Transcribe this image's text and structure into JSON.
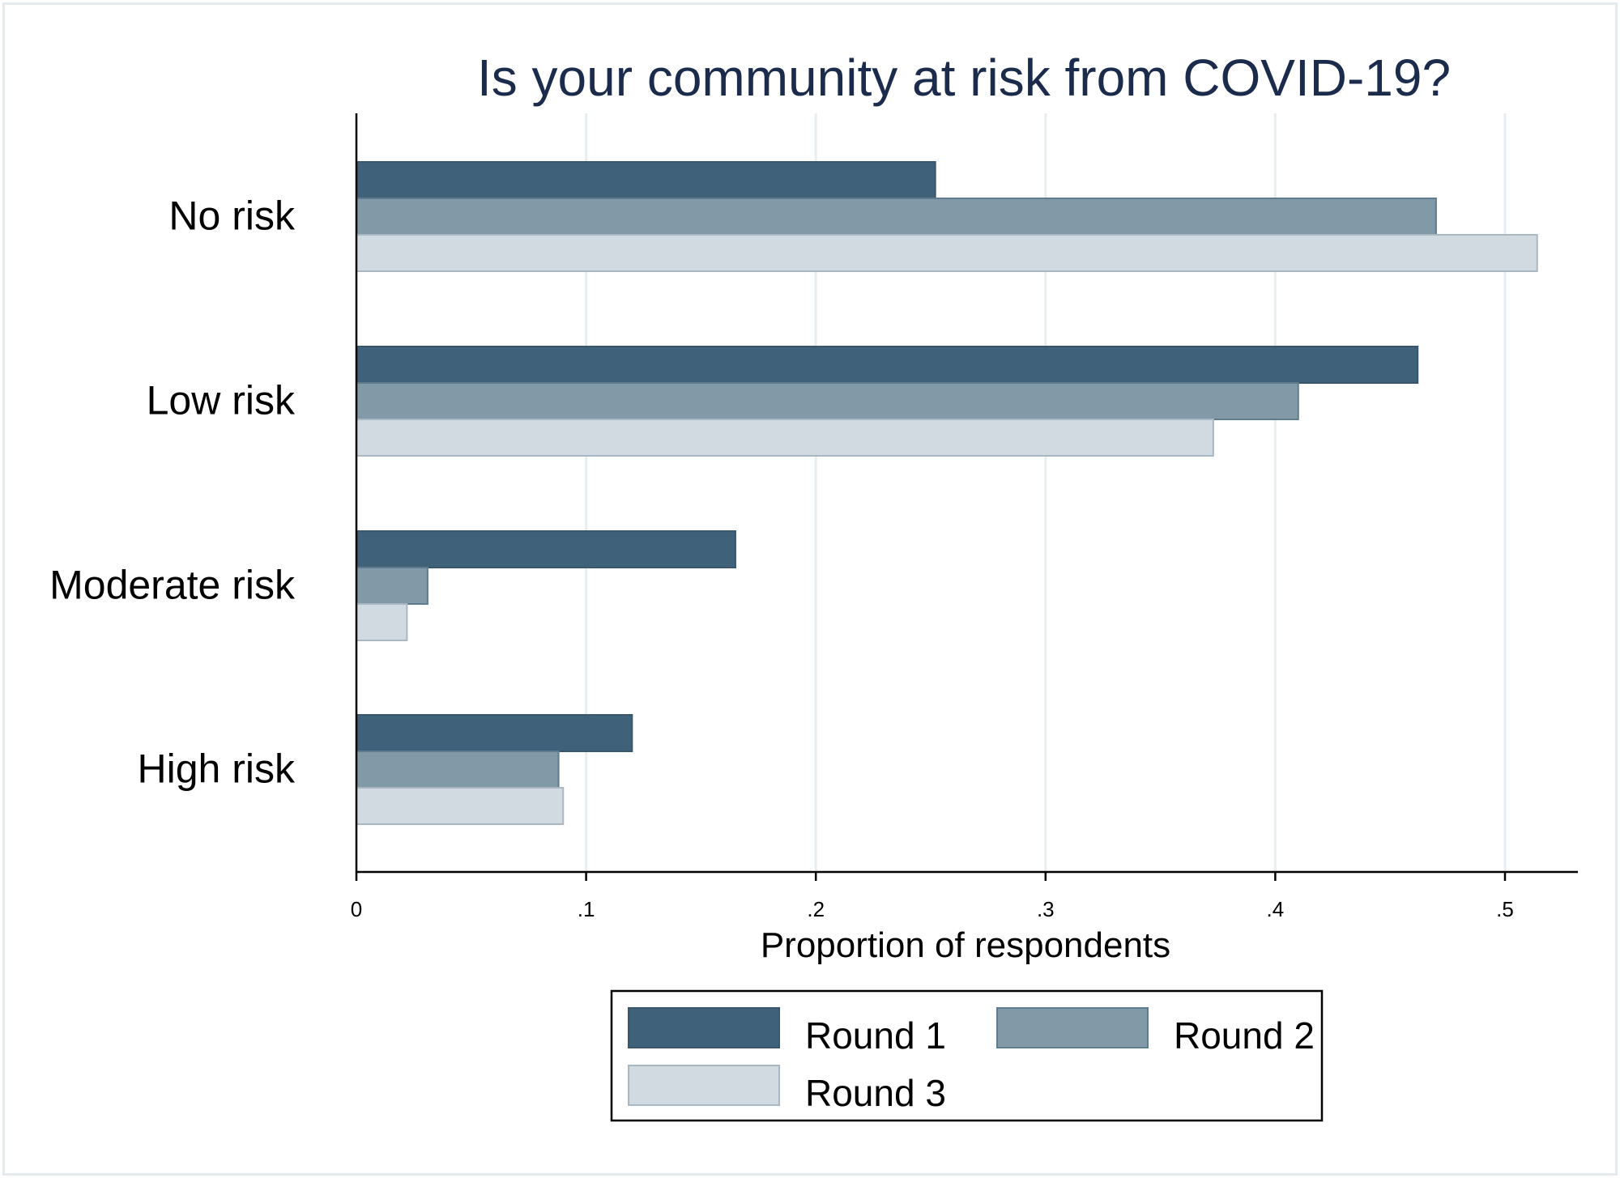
{
  "chart_data": {
    "type": "bar",
    "orientation": "horizontal",
    "title": "Is your community at risk from COVID-19?",
    "xlabel": "Proportion of respondents",
    "ylabel": "",
    "categories": [
      "No risk",
      "Low risk",
      "Moderate risk",
      "High risk"
    ],
    "series": [
      {
        "name": "Round 1",
        "color": "#3f6179",
        "values": [
          0.252,
          0.462,
          0.165,
          0.12
        ]
      },
      {
        "name": "Round 2",
        "color": "#8299a8",
        "values": [
          0.47,
          0.41,
          0.031,
          0.088
        ]
      },
      {
        "name": "Round 3",
        "color": "#d2dae1",
        "values": [
          0.514,
          0.373,
          0.022,
          0.09
        ]
      }
    ],
    "xlim": [
      0,
      0.53
    ],
    "xticks": [
      0,
      0.1,
      0.2,
      0.3,
      0.4,
      0.5
    ],
    "xtick_labels": [
      "0",
      ".1",
      ".2",
      ".3",
      ".4",
      ".5"
    ],
    "grid": true,
    "legend_position": "bottom"
  }
}
